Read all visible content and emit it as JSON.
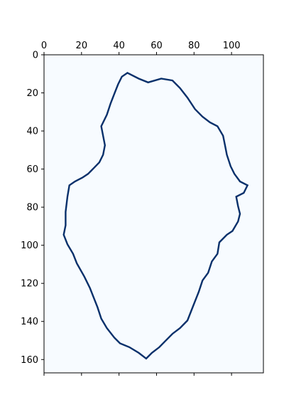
{
  "chart_data": {
    "type": "heatmap",
    "title": "",
    "xlabel": "",
    "ylabel": "",
    "x_axis_position": "top",
    "xlim": [
      0,
      117
    ],
    "ylim": [
      167,
      0
    ],
    "xticks": [
      0,
      20,
      40,
      60,
      80,
      100
    ],
    "yticks": [
      0,
      20,
      40,
      60,
      80,
      100,
      120,
      140,
      160
    ],
    "grid": false,
    "legend": "none",
    "colormap": "Blues",
    "colors": {
      "background": "#f7fbff",
      "outline": "#08306b"
    },
    "outline": [
      [
        44,
        9
      ],
      [
        50,
        12
      ],
      [
        55,
        14
      ],
      [
        62,
        12
      ],
      [
        68,
        13
      ],
      [
        72,
        17
      ],
      [
        76,
        22
      ],
      [
        80,
        28
      ],
      [
        84,
        32
      ],
      [
        88,
        35
      ],
      [
        92,
        37
      ],
      [
        95,
        42
      ],
      [
        96,
        47
      ],
      [
        97,
        52
      ],
      [
        99,
        58
      ],
      [
        101,
        62
      ],
      [
        104,
        66
      ],
      [
        108,
        68
      ],
      [
        106,
        72
      ],
      [
        102,
        74
      ],
      [
        103,
        79
      ],
      [
        104,
        83
      ],
      [
        103,
        87
      ],
      [
        100,
        92
      ],
      [
        97,
        94
      ],
      [
        93,
        98
      ],
      [
        92,
        104
      ],
      [
        89,
        108
      ],
      [
        87,
        114
      ],
      [
        84,
        118
      ],
      [
        82,
        124
      ],
      [
        80,
        129
      ],
      [
        78,
        134
      ],
      [
        76,
        139
      ],
      [
        72,
        143
      ],
      [
        68,
        146
      ],
      [
        64,
        150
      ],
      [
        61,
        153
      ],
      [
        57,
        156
      ],
      [
        54,
        159
      ],
      [
        50,
        156
      ],
      [
        45,
        153
      ],
      [
        40,
        151
      ],
      [
        37,
        148
      ],
      [
        33,
        143
      ],
      [
        30,
        138
      ],
      [
        28,
        132
      ],
      [
        26,
        127
      ],
      [
        24,
        122
      ],
      [
        21,
        116
      ],
      [
        17,
        109
      ],
      [
        15,
        104
      ],
      [
        12,
        99
      ],
      [
        10,
        94
      ],
      [
        11,
        89
      ],
      [
        11,
        82
      ],
      [
        12,
        74
      ],
      [
        13,
        68
      ],
      [
        16,
        66
      ],
      [
        20,
        64
      ],
      [
        23,
        62
      ],
      [
        26,
        59
      ],
      [
        29,
        56
      ],
      [
        31,
        52
      ],
      [
        32,
        47
      ],
      [
        31,
        42
      ],
      [
        30,
        37
      ],
      [
        33,
        31
      ],
      [
        35,
        25
      ],
      [
        37,
        20
      ],
      [
        39,
        15
      ],
      [
        41,
        11
      ]
    ]
  }
}
